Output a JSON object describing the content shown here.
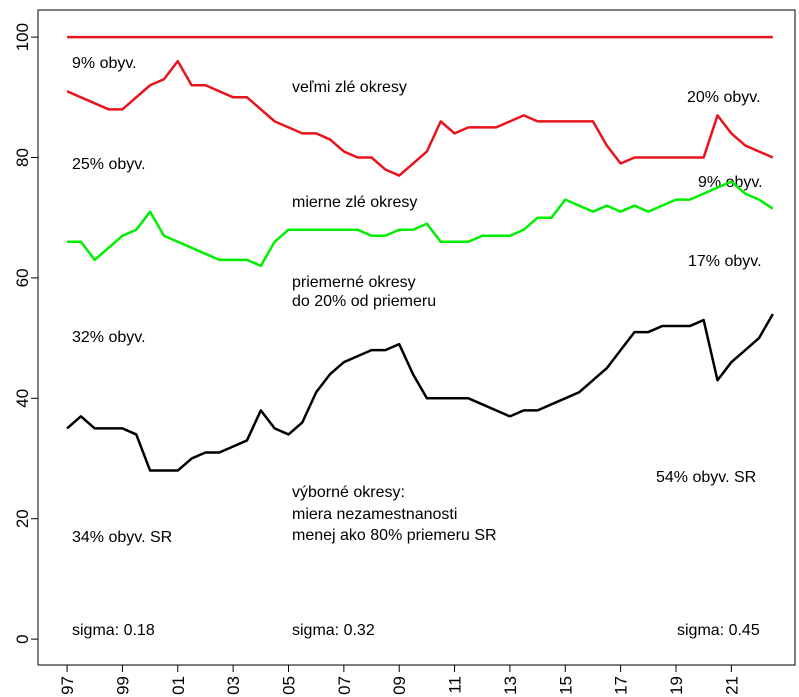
{
  "chart_data": {
    "type": "line",
    "x": [
      1997,
      1997.5,
      1998,
      1998.5,
      1999,
      1999.5,
      2000,
      2000.5,
      2001,
      2001.5,
      2002,
      2002.5,
      2003,
      2003.5,
      2004,
      2004.5,
      2005,
      2005.5,
      2006,
      2006.5,
      2007,
      2007.5,
      2008,
      2008.5,
      2009,
      2009.5,
      2010,
      2010.5,
      2011,
      2011.5,
      2012,
      2012.5,
      2013,
      2013.5,
      2014,
      2014.5,
      2015,
      2015.5,
      2016,
      2016.5,
      2017,
      2017.5,
      2018,
      2018.5,
      2019,
      2019.5,
      2020,
      2020.5,
      2021,
      2021.5,
      2022,
      2022.5
    ],
    "series": [
      {
        "color": "#e8141c",
        "values": [
          100,
          100,
          100,
          100,
          100,
          100,
          100,
          100,
          100,
          100,
          100,
          100,
          100,
          100,
          100,
          100,
          100,
          100,
          100,
          100,
          100,
          100,
          100,
          100,
          100,
          100,
          100,
          100,
          100,
          100,
          100,
          100,
          100,
          100,
          100,
          100,
          100,
          100,
          100,
          100,
          100,
          100,
          100,
          100,
          100,
          100,
          100,
          100,
          100,
          100,
          100,
          100
        ]
      },
      {
        "color": "#e8141c",
        "values": [
          91,
          90,
          89,
          88,
          88,
          90,
          92,
          93,
          96,
          92,
          92,
          91,
          90,
          90,
          88,
          86,
          85,
          84,
          84,
          83,
          81,
          80,
          80,
          78,
          77,
          79,
          81,
          86,
          84,
          85,
          85,
          85,
          86,
          87,
          86,
          86,
          86,
          86,
          86,
          82,
          79,
          80,
          80,
          80,
          80,
          80,
          80,
          87,
          84,
          82,
          81,
          80
        ]
      },
      {
        "color": "#00ee00",
        "values": [
          66,
          66,
          63,
          65,
          67,
          68,
          71,
          67,
          66,
          65,
          64,
          63,
          63,
          63,
          62,
          66,
          68,
          68,
          68,
          68,
          68,
          68,
          67,
          67,
          68,
          68,
          69,
          66,
          66,
          66,
          67,
          67,
          67,
          68,
          70,
          70,
          73,
          72,
          71,
          72,
          71,
          72,
          71,
          72,
          73,
          73,
          74,
          75,
          76,
          74,
          73,
          71.5
        ]
      },
      {
        "color": "#000000",
        "values": [
          35,
          37,
          35,
          35,
          35,
          34,
          28,
          28,
          28,
          30,
          31,
          31,
          32,
          33,
          38,
          35,
          34,
          36,
          41,
          44,
          46,
          47,
          48,
          48,
          49,
          44,
          40,
          40,
          40,
          40,
          39,
          38,
          37,
          38,
          38,
          39,
          40,
          41,
          43,
          45,
          48,
          51,
          51,
          52,
          52,
          52,
          53,
          43,
          46,
          48,
          50,
          54
        ]
      }
    ],
    "xlim": [
      1995.95,
      2023.3
    ],
    "ylim": [
      -4.3,
      104.5
    ],
    "yticks": [
      0,
      20,
      40,
      60,
      80,
      100
    ],
    "xticks": [
      {
        "value": 1997,
        "label": "97"
      },
      {
        "value": 1999,
        "label": "99"
      },
      {
        "value": 2001,
        "label": "01"
      },
      {
        "value": 2003,
        "label": "03"
      },
      {
        "value": 2005,
        "label": "05"
      },
      {
        "value": 2007,
        "label": "07"
      },
      {
        "value": 2009,
        "label": "09"
      },
      {
        "value": 2011,
        "label": "11"
      },
      {
        "value": 2013,
        "label": "13"
      },
      {
        "value": 2015,
        "label": "15"
      },
      {
        "value": 2017,
        "label": "17"
      },
      {
        "value": 2019,
        "label": "19"
      },
      {
        "value": 2021,
        "label": "21"
      }
    ],
    "annotations": [
      "9% obyv.",
      "veľmi zlé okresy",
      "20% obyv.",
      "25% obyv.",
      "mierne zlé okresy",
      "9% obyv.",
      "17% obyv.",
      "priemerné okresy",
      "do 20% od priemeru",
      "32% obyv.",
      "54% obyv. SR",
      "výborné okresy:",
      "miera nezamestnanosti",
      "menej ako 80% priemeru SR",
      "34% obyv. SR",
      "sigma: 0.18",
      "sigma: 0.32",
      "sigma: 0.45"
    ]
  }
}
